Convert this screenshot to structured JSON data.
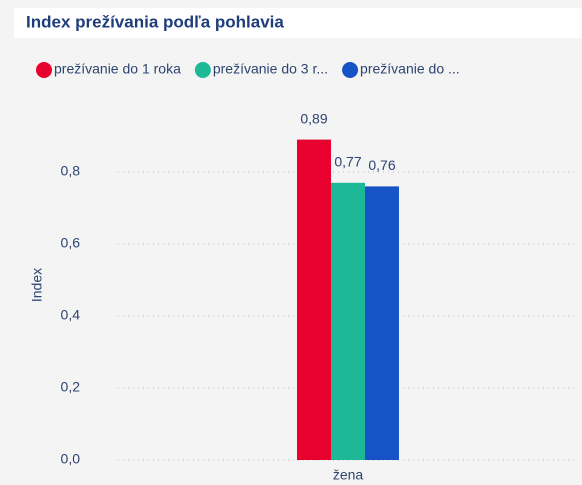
{
  "chart_data": {
    "type": "bar",
    "title": "Index prežívania podľa pohlavia",
    "y_label": "Index",
    "categories": [
      "žena"
    ],
    "series": [
      {
        "name": "prežívanie do 1 roka",
        "color": "#e8002f",
        "values": [
          0.89
        ],
        "value_labels": [
          "0,89"
        ]
      },
      {
        "name": "prežívanie do 3 r...",
        "color": "#1db896",
        "values": [
          0.77
        ],
        "value_labels": [
          "0,77"
        ]
      },
      {
        "name": "prežívanie do ...",
        "color": "#1553c7",
        "values": [
          0.76
        ],
        "value_labels": [
          "0,76"
        ]
      }
    ],
    "ylim": [
      0,
      1
    ],
    "yticks": [
      {
        "value": 0,
        "label": "0,0"
      },
      {
        "value": 0.2,
        "label": "0,2"
      },
      {
        "value": 0.4,
        "label": "0,4"
      },
      {
        "value": 0.6,
        "label": "0,6"
      },
      {
        "value": 0.8,
        "label": "0,8"
      }
    ],
    "grid": true,
    "legend": "top"
  }
}
